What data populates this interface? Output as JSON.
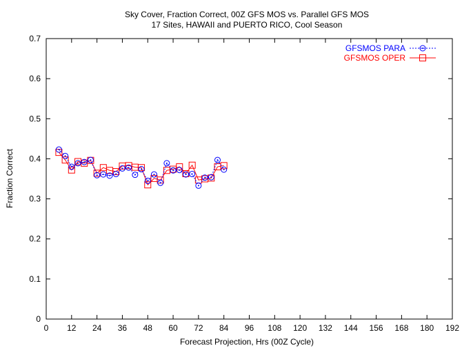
{
  "chart_data": {
    "type": "line",
    "title": [
      "Sky Cover, Fraction Correct, 00Z GFS MOS vs. Parallel GFS MOS",
      "17 Sites, HAWAII and PUERTO RICO, Cool Season"
    ],
    "xlabel": "Forecast Projection, Hrs (00Z Cycle)",
    "ylabel": "Fraction Correct",
    "xlim": [
      0,
      192
    ],
    "ylim": [
      0,
      0.7
    ],
    "xticks": [
      0,
      12,
      24,
      36,
      48,
      60,
      72,
      84,
      96,
      108,
      120,
      132,
      144,
      156,
      168,
      180,
      192
    ],
    "yticks": [
      0,
      0.1,
      0.2,
      0.3,
      0.4,
      0.5,
      0.6,
      0.7
    ],
    "ytick_labels": [
      "0",
      "0.1",
      "0.2",
      "0.3",
      "0.4",
      "0.5",
      "0.6",
      "0.7"
    ],
    "grid": false,
    "legend_position": "top-right",
    "x": [
      6,
      9,
      12,
      15,
      18,
      21,
      24,
      27,
      30,
      33,
      36,
      39,
      42,
      45,
      48,
      51,
      54,
      57,
      60,
      63,
      66,
      69,
      72,
      75,
      78,
      81,
      84
    ],
    "series": [
      {
        "name": "GFSMOS PARA",
        "color": "#0000ff",
        "marker": "circle",
        "line_style": "dotted",
        "values": [
          0.423,
          0.407,
          0.38,
          0.389,
          0.392,
          0.397,
          0.359,
          0.361,
          0.358,
          0.362,
          0.376,
          0.378,
          0.36,
          0.374,
          0.345,
          0.361,
          0.34,
          0.389,
          0.371,
          0.372,
          0.361,
          0.362,
          0.333,
          0.353,
          0.354,
          0.397,
          0.373
        ]
      },
      {
        "name": "GFSMOS OPER",
        "color": "#ff0000",
        "marker": "square",
        "line_style": "solid",
        "values": [
          0.416,
          0.397,
          0.372,
          0.393,
          0.389,
          0.396,
          0.364,
          0.378,
          0.371,
          0.368,
          0.382,
          0.383,
          0.379,
          0.378,
          0.335,
          0.351,
          0.347,
          0.371,
          0.374,
          0.38,
          0.363,
          0.384,
          0.347,
          0.35,
          0.352,
          0.38,
          0.383
        ]
      }
    ]
  }
}
